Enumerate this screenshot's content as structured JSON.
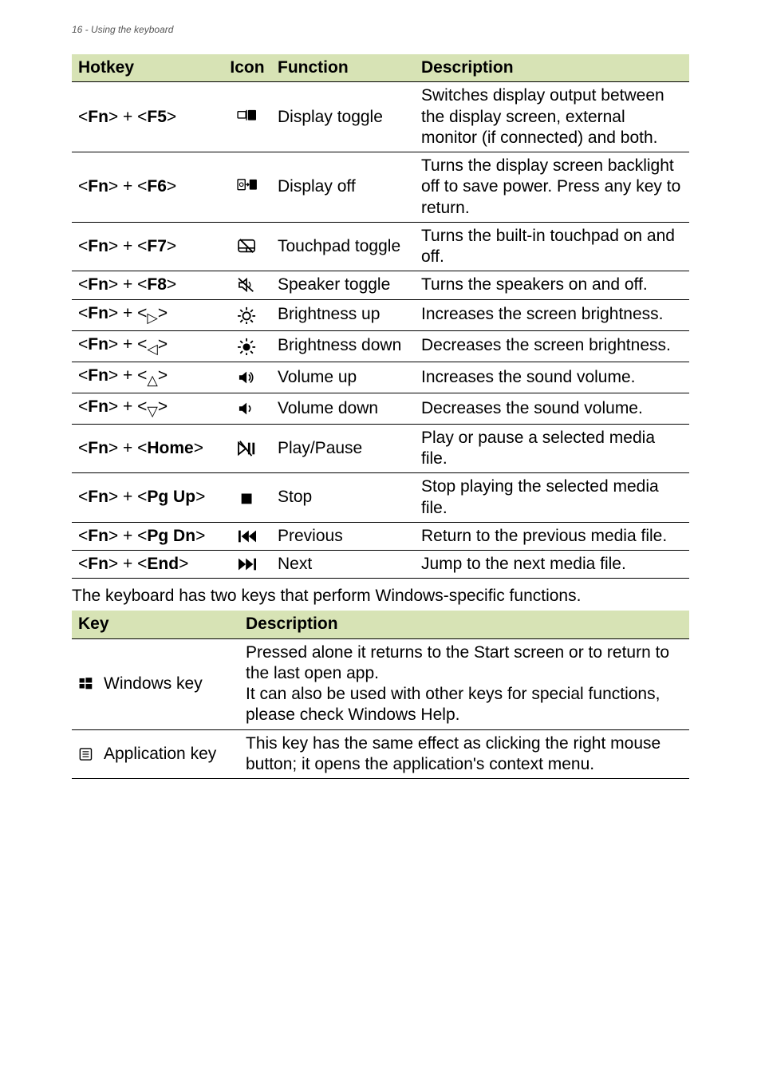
{
  "page_header": "16 - Using the keyboard",
  "colors": {
    "header_bg": "#d7e3b5",
    "border": "#000000",
    "text": "#000000",
    "muted": "#555555"
  },
  "table1": {
    "headers": {
      "hotkey": "Hotkey",
      "icon": "Icon",
      "function": "Function",
      "description": "Description"
    },
    "rows": [
      {
        "hotkey_html": "<<b>Fn</b>> + <<b>F5</b>>",
        "icon": "display-toggle-icon",
        "function": "Display toggle",
        "description": "Switches display output between the display screen, external monitor (if connected) and both."
      },
      {
        "hotkey_html": "<<b>Fn</b>> + <<b>F6</b>>",
        "icon": "display-off-icon",
        "function": "Display off",
        "description": "Turns the display screen backlight off to save power. Press any key to return."
      },
      {
        "hotkey_html": "<<b>Fn</b>> + <<b>F7</b>>",
        "icon": "touchpad-icon",
        "function": "Touchpad toggle",
        "description": "Turns the built-in touchpad on and off."
      },
      {
        "hotkey_html": "<<b>Fn</b>> + <<b>F8</b>>",
        "icon": "speaker-mute-icon",
        "function": "Speaker toggle",
        "description": "Turns the speakers on and off."
      },
      {
        "hotkey_html": "<<b>Fn</b>> + <<sub>▷</sub>>",
        "icon": "brightness-up-icon",
        "function": "Brightness up",
        "description": "Increases the screen brightness."
      },
      {
        "hotkey_html": "<<b>Fn</b>> + <<sub>◁</sub>>",
        "icon": "brightness-down-icon",
        "function": "Brightness down",
        "description": "Decreases the screen brightness."
      },
      {
        "hotkey_html": "<<b>Fn</b>> + <<sub>△</sub>>",
        "icon": "volume-up-icon",
        "function": "Volume up",
        "description": "Increases the sound volume."
      },
      {
        "hotkey_html": "<<b>Fn</b>> + <<sub>▽</sub>>",
        "icon": "volume-down-icon",
        "function": "Volume down",
        "description": "Decreases the sound volume."
      },
      {
        "hotkey_html": "<<b>Fn</b>> + <<b>Home</b>>",
        "icon": "play-pause-icon",
        "function": "Play/Pause",
        "description": "Play or pause a selected media file."
      },
      {
        "hotkey_html": "<<b>Fn</b>> + <<b>Pg Up</b>>",
        "icon": "stop-icon",
        "function": "Stop",
        "description": "Stop playing the selected media file."
      },
      {
        "hotkey_html": "<<b>Fn</b>> + <<b>Pg Dn</b>>",
        "icon": "previous-icon",
        "function": "Previous",
        "description": "Return to the previous media file."
      },
      {
        "hotkey_html": "<<b>Fn</b>> + <<b>End</b>>",
        "icon": "next-icon",
        "function": "Next",
        "description": "Jump to the next media file."
      }
    ]
  },
  "caption": "The keyboard has two keys that perform Windows-specific functions.",
  "table2": {
    "headers": {
      "key": "Key",
      "description": "Description"
    },
    "rows": [
      {
        "icon": "windows-icon",
        "key": "Windows key",
        "description": "Pressed alone it returns to the Start screen or to return to the last open app.\nIt can also be used with other keys for special functions, please check Windows Help."
      },
      {
        "icon": "application-key-icon",
        "key": "Application key",
        "description": "This key has the same effect as clicking the right mouse button; it opens the application's context menu."
      }
    ]
  }
}
